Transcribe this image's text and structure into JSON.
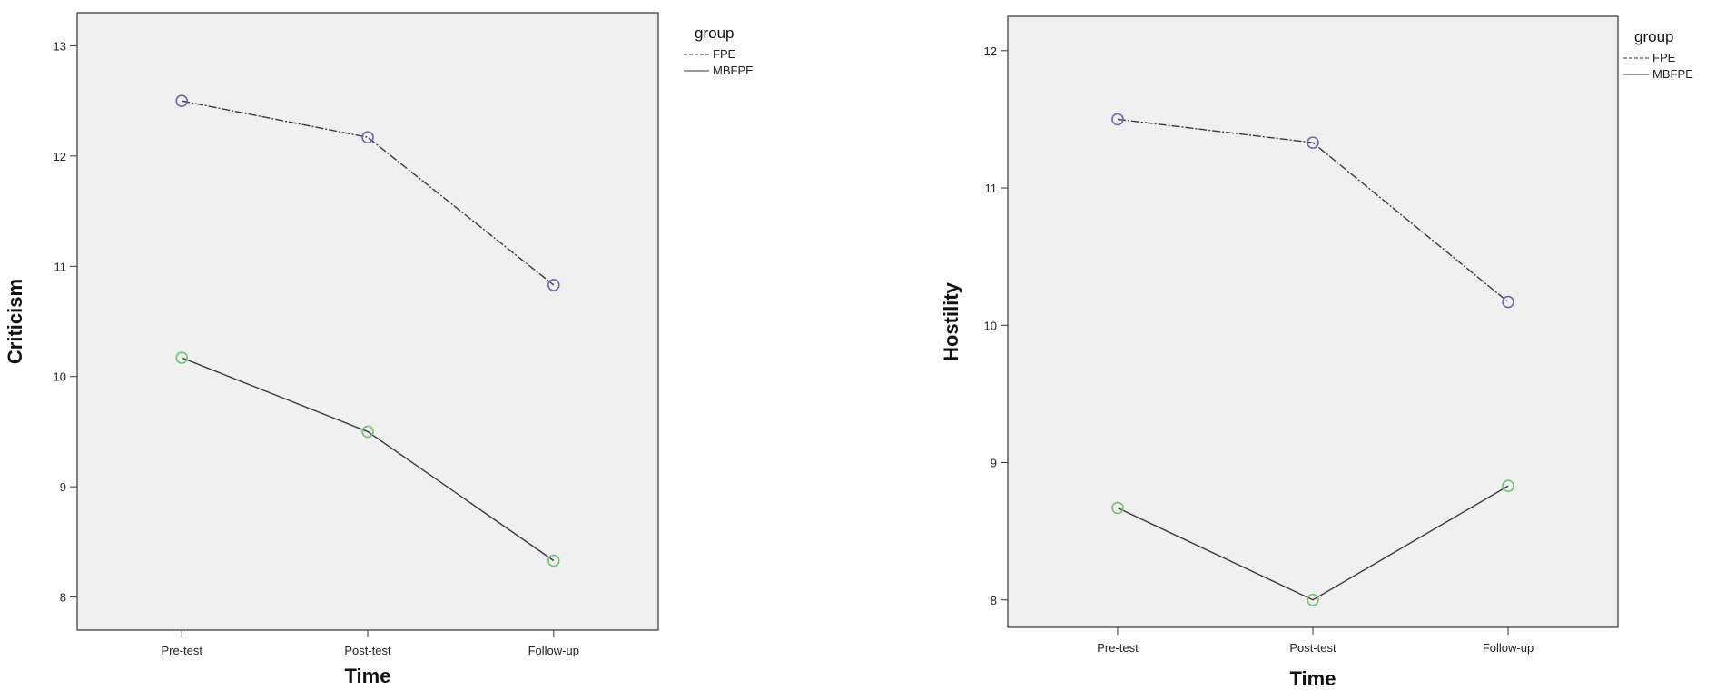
{
  "chart_data": [
    {
      "type": "line",
      "ylabel": "Criticism",
      "xlabel": "Time",
      "categories": [
        "Pre-test",
        "Post-test",
        "Follow-up"
      ],
      "yticks": [
        8,
        9,
        10,
        11,
        12,
        13
      ],
      "ylim": [
        7.7,
        13.3
      ],
      "legend": {
        "title": "group",
        "position": "top-right"
      },
      "series": [
        {
          "name": "FPE",
          "values": [
            12.5,
            12.17,
            10.83
          ],
          "color": "#6a6aa8"
        },
        {
          "name": "MBFPE",
          "values": [
            10.17,
            9.5,
            8.33
          ],
          "color": "#6fc26f"
        }
      ]
    },
    {
      "type": "line",
      "ylabel": "Hostility",
      "xlabel": "Time",
      "categories": [
        "Pre-test",
        "Post-test",
        "Follow-up"
      ],
      "yticks": [
        8,
        9,
        10,
        11,
        12
      ],
      "ylim": [
        7.8,
        12.25
      ],
      "legend": {
        "title": "group",
        "position": "top-right"
      },
      "series": [
        {
          "name": "FPE",
          "values": [
            11.5,
            11.33,
            10.17
          ],
          "color": "#6a6aa8"
        },
        {
          "name": "MBFPE",
          "values": [
            8.67,
            8.0,
            8.83
          ],
          "color": "#6fc26f"
        }
      ]
    }
  ]
}
